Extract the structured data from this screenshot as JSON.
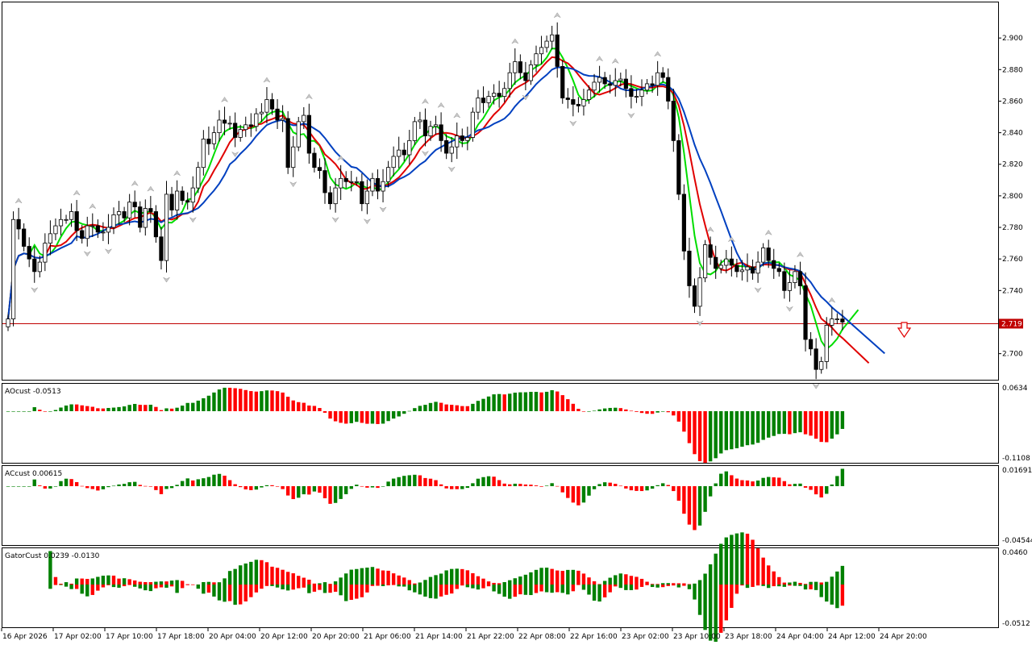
{
  "chart_data": [
    {
      "type": "candlestick",
      "pane": "price",
      "ylim": [
        2.685,
        2.92
      ],
      "y_ticks": [
        "2.900",
        "2.880",
        "2.860",
        "2.840",
        "2.820",
        "2.800",
        "2.780",
        "2.760",
        "2.740",
        "2.720",
        "2.700"
      ],
      "current_price": "2.719",
      "current_price_value": 2.719,
      "price_line_color": "#c00000",
      "ma_colors": {
        "fast": "#00dd00",
        "medium": "#e00000",
        "slow": "#0040c0"
      },
      "close": [
        2.722,
        2.785,
        2.779,
        2.768,
        2.76,
        2.752,
        2.758,
        2.77,
        2.776,
        2.781,
        2.785,
        2.785,
        2.79,
        2.778,
        2.773,
        2.781,
        2.781,
        2.777,
        2.777,
        2.78,
        2.788,
        2.79,
        2.786,
        2.796,
        2.793,
        2.78,
        2.792,
        2.79,
        2.774,
        2.759,
        2.801,
        2.791,
        2.803,
        2.797,
        2.796,
        2.805,
        2.818,
        2.836,
        2.833,
        2.84,
        2.848,
        2.846,
        2.846,
        2.837,
        2.842,
        2.845,
        2.844,
        2.852,
        2.853,
        2.861,
        2.855,
        2.848,
        2.849,
        2.818,
        2.831,
        2.847,
        2.851,
        2.827,
        2.818,
        2.816,
        2.802,
        2.795,
        2.805,
        2.811,
        2.809,
        2.809,
        2.809,
        2.795,
        2.803,
        2.811,
        2.803,
        2.809,
        2.818,
        2.825,
        2.829,
        2.826,
        2.835,
        2.847,
        2.848,
        2.838,
        2.844,
        2.845,
        2.835,
        2.827,
        2.831,
        2.838,
        2.835,
        2.837,
        2.853,
        2.862,
        2.859,
        2.863,
        2.865,
        2.863,
        2.868,
        2.878,
        2.885,
        2.878,
        2.873,
        2.883,
        2.89,
        2.894,
        2.898,
        2.902,
        2.882,
        2.862,
        2.861,
        2.858,
        2.857,
        2.861,
        2.867,
        2.872,
        2.875,
        2.871,
        2.87,
        2.873,
        2.874,
        2.868,
        2.863,
        2.863,
        2.867,
        2.871,
        2.87,
        2.878,
        2.875,
        2.86,
        2.835,
        2.801,
        2.765,
        2.743,
        2.73,
        2.748,
        2.769,
        2.761,
        2.754,
        2.756,
        2.76,
        2.756,
        2.752,
        2.753,
        2.755,
        2.751,
        2.758,
        2.767,
        2.759,
        2.754,
        2.752,
        2.74,
        2.745,
        2.752,
        2.743,
        2.709,
        2.703,
        2.69,
        2.695,
        2.718,
        2.722,
        2.722,
        2.72
      ],
      "source_note_removed": true
    },
    {
      "type": "histogram",
      "pane": "AOcust",
      "label": "AOcust -0.0513",
      "y_ticks": [
        "0.0634",
        "-0.1108"
      ],
      "ylim": [
        -0.1108,
        0.0634
      ],
      "colors": {
        "up": "#008000",
        "down": "#ff0000"
      }
    },
    {
      "type": "histogram",
      "pane": "ACcust",
      "label": "ACcust 0.00615",
      "y_ticks": [
        "0.01691",
        "-0.04544"
      ],
      "ylim": [
        -0.04544,
        0.01691
      ],
      "colors": {
        "up": "#008000",
        "down": "#ff0000"
      }
    },
    {
      "type": "histogram",
      "pane": "GatorCust",
      "label": "GatorCust 0.0239 -0.0130",
      "y_ticks": [
        "0.0460",
        "-0.0512"
      ],
      "ylim": [
        -0.0512,
        0.046
      ],
      "colors": {
        "up": "#008000",
        "down": "#ff0000"
      }
    }
  ],
  "x_labels": [
    "16 Apr 2026",
    "17 Apr 02:00",
    "17 Apr 10:00",
    "17 Apr 18:00",
    "20 Apr 04:00",
    "20 Apr 12:00",
    "20 Apr 20:00",
    "21 Apr 06:00",
    "21 Apr 14:00",
    "21 Apr 22:00",
    "22 Apr 08:00",
    "22 Apr 16:00",
    "23 Apr 02:00",
    "23 Apr 10:00",
    "23 Apr 18:00",
    "24 Apr 04:00",
    "24 Apr 12:00",
    "24 Apr 20:00"
  ]
}
